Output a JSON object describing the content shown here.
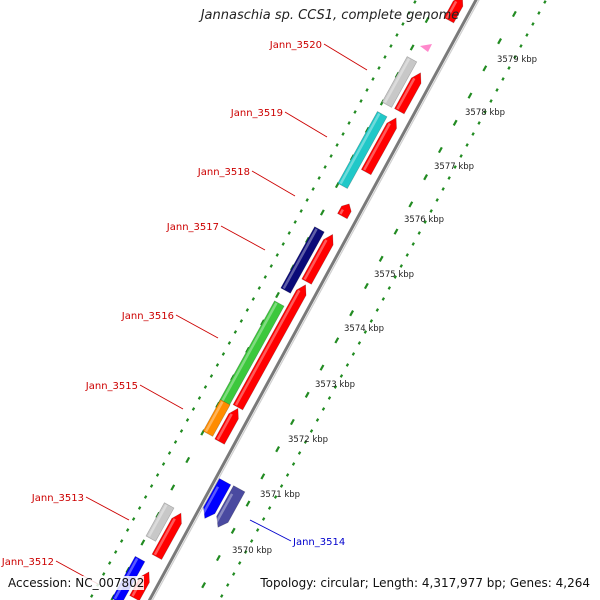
{
  "title": "Jannaschia sp. CCS1, complete genome",
  "accession": "Accession: NC_007802",
  "topology": "Topology: circular; Length: 4,317,977 bp; Genes: 4,264",
  "colors": {
    "backbone": "#9a9a9a",
    "tick": "#228b22",
    "label_red": "#cc0000",
    "label_blue": "#0000cc",
    "gene_red": "#ff0000",
    "gray": "#c8c8c8",
    "cyan": "#20c8c8",
    "navy": "#0a0a78",
    "green": "#3cc83c",
    "orange": "#ff8c00",
    "blue": "#0000ff",
    "slate": "#4a4aa0",
    "pink": "#ff88cc"
  },
  "kbp_marks": [
    "3579 kbp",
    "3578 kbp",
    "3577 kbp",
    "3576 kbp",
    "3575 kbp",
    "3574 kbp",
    "3573 kbp",
    "3572 kbp",
    "3571 kbp",
    "3570 kbp"
  ],
  "genes": [
    {
      "name": "Jann_3520",
      "color": "gray"
    },
    {
      "name": "Jann_3519",
      "color": "cyan"
    },
    {
      "name": "Jann_3518",
      "color": "gene_red"
    },
    {
      "name": "Jann_3517",
      "color": "navy"
    },
    {
      "name": "Jann_3516",
      "color": "green"
    },
    {
      "name": "Jann_3515",
      "color": "orange"
    },
    {
      "name": "Jann_3514",
      "color": "slate"
    },
    {
      "name": "Jann_3513",
      "color": "gray"
    },
    {
      "name": "Jann_3512",
      "color": "blue"
    }
  ]
}
